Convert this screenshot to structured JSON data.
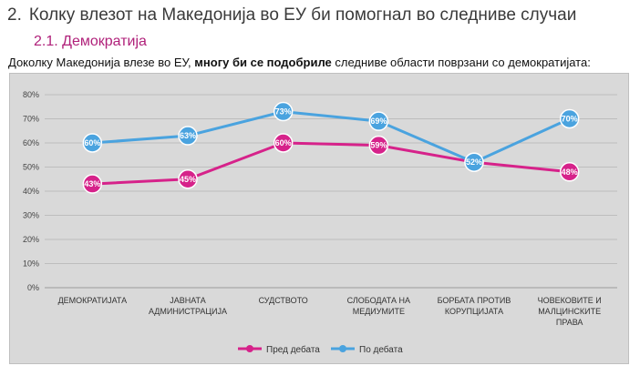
{
  "heading": {
    "number": "2.",
    "text": "Колку влезот на Македонија во ЕУ би помогнал во следниве случаи"
  },
  "subheading": "2.1. Демократија",
  "intro": {
    "before": "Доколку Македонија влезе во ЕУ,",
    "bold": "многу би се подобриле",
    "after": "следниве области поврзани со демократијата:"
  },
  "chart_data": {
    "type": "line",
    "categories": [
      [
        "ДЕМОКРАТИЈАТА"
      ],
      [
        "ЈАВНАТА",
        "АДМИНИСТРАЦИЈА"
      ],
      [
        "СУДСТВОТО"
      ],
      [
        "СЛОБОДАТА НА",
        "МЕДИУМИТЕ"
      ],
      [
        "БОРБАТА ПРОТИВ",
        "КОРУПЦИЈАТА"
      ],
      [
        "ЧОВЕКОВИТЕ И",
        "МАЛЦИНСКИТЕ",
        "ПРАВА"
      ]
    ],
    "y_ticks": [
      "0%",
      "10%",
      "20%",
      "30%",
      "40%",
      "50%",
      "60%",
      "70%",
      "80%"
    ],
    "ylim": [
      0,
      80
    ],
    "grid": true,
    "legend_position": "bottom",
    "series": [
      {
        "name": "Пред дебата",
        "color": "#d6228a",
        "values": [
          43,
          45,
          60,
          59,
          52,
          48
        ],
        "labels": [
          "43%",
          "45%",
          "60%",
          "59%",
          "52%",
          "48%"
        ]
      },
      {
        "name": "По дебата",
        "color": "#4aa3df",
        "values": [
          60,
          63,
          73,
          69,
          52,
          70
        ],
        "labels": [
          "60%",
          "63%",
          "73%",
          "69%",
          "52%",
          "70%"
        ]
      }
    ]
  }
}
